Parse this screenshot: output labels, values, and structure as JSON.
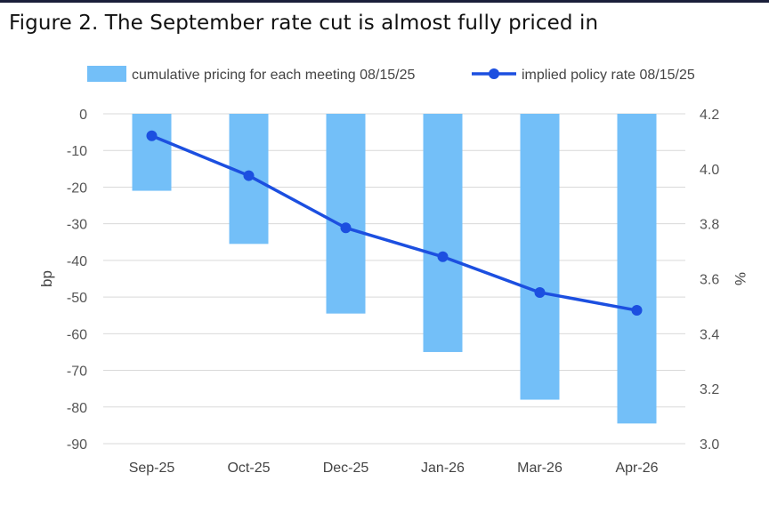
{
  "figure_title": "Figure 2. The September rate cut is almost fully priced in",
  "chart_data": {
    "type": "bar",
    "title": "Figure 2. The September rate cut is almost fully priced in",
    "categories": [
      "Sep-25",
      "Oct-25",
      "Dec-25",
      "Jan-26",
      "Mar-26",
      "Apr-26"
    ],
    "series": [
      {
        "name": "cumulative pricing for each meeting  08/15/25",
        "type": "bar",
        "axis": "left",
        "color": "#73BFF8",
        "values": [
          -21,
          -35.5,
          -54.5,
          -65,
          -78,
          -84.5
        ]
      },
      {
        "name": "implied policy rate 08/15/25",
        "type": "line",
        "axis": "right",
        "color": "#1C4FE0",
        "values": [
          4.12,
          3.975,
          3.785,
          3.68,
          3.55,
          3.485
        ]
      }
    ],
    "left_axis": {
      "label": "bp",
      "min": -90,
      "max": 0,
      "ticks": [
        0,
        -10,
        -20,
        -30,
        -40,
        -50,
        -60,
        -70,
        -80,
        -90
      ]
    },
    "right_axis": {
      "label": "%",
      "min": 3.0,
      "max": 4.2,
      "ticks": [
        "4.2",
        "4.0",
        "3.8",
        "3.6",
        "3.4",
        "3.2",
        "3.0"
      ]
    },
    "legend_position": "top",
    "grid": true
  }
}
